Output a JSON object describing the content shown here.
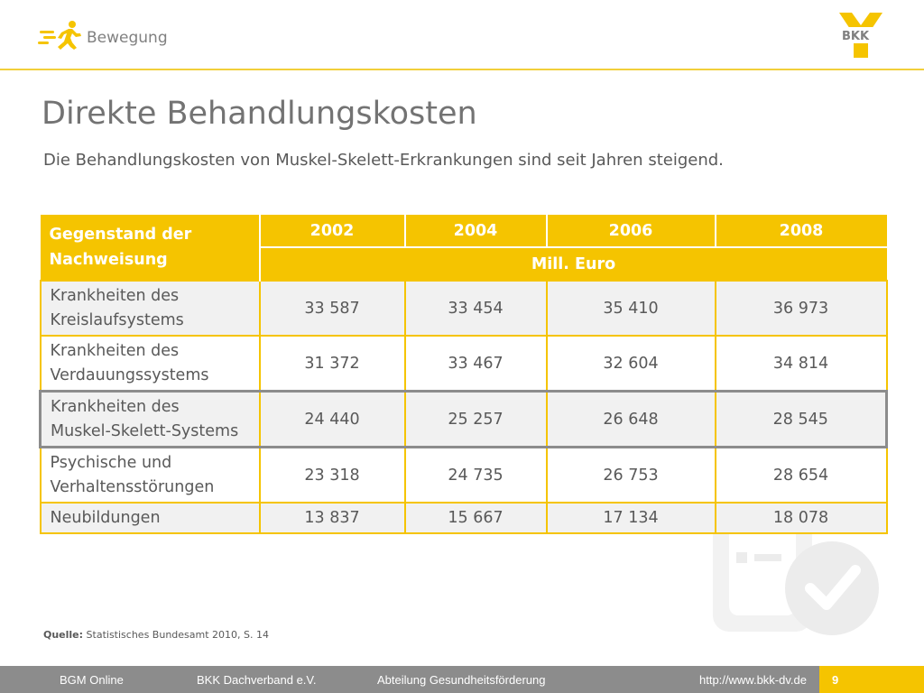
{
  "header": {
    "section_label": "Bewegung",
    "logo_text": "BKK"
  },
  "title": "Direkte Behandlungskosten",
  "subtitle": "Die Behandlungskosten von Muskel-Skelett-Erkrankungen sind seit Jahren steigend.",
  "table": {
    "row_header_line1": "Gegenstand der",
    "row_header_line2": "Nachweisung",
    "years": [
      "2002",
      "2004",
      "2006",
      "2008"
    ],
    "unit": "Mill. Euro",
    "rows": [
      {
        "line1": "Krankheiten des",
        "line2": "Kreislaufsystems",
        "values": [
          "33 587",
          "33 454",
          "35 410",
          "36 973"
        ]
      },
      {
        "line1": "Krankheiten des",
        "line2": "Verdauungssystems",
        "values": [
          "31 372",
          "33 467",
          "32 604",
          "34 814"
        ]
      },
      {
        "line1": "Krankheiten des",
        "line2": "Muskel-Skelett-Systems",
        "values": [
          "24 440",
          "25 257",
          "26 648",
          "28 545"
        ]
      },
      {
        "line1": "Psychische und",
        "line2": "Verhaltensstörungen",
        "values": [
          "23 318",
          "24 735",
          "26 753",
          "28 654"
        ]
      },
      {
        "line1": "Neubildungen",
        "line2": "",
        "values": [
          "13 837",
          "15 667",
          "17 134",
          "18 078"
        ]
      }
    ]
  },
  "source": {
    "label": "Quelle:",
    "text": "Statistisches Bundesamt 2010, S. 14"
  },
  "footer": {
    "item1": "BGM Online",
    "item2": "BKK Dachverband e.V.",
    "item3": "Abteilung Gesundheitsförderung",
    "item4": "http://www.bkk-dv.de",
    "page_number": "9"
  },
  "colors": {
    "accent": "#f5c400",
    "header_line": "#f2cf3a",
    "footer_gray": "#8c8c8c",
    "highlight_border": "#8c8c8c"
  },
  "icons": [
    "runner-icon",
    "bkk-logo",
    "checkmark-icon"
  ]
}
